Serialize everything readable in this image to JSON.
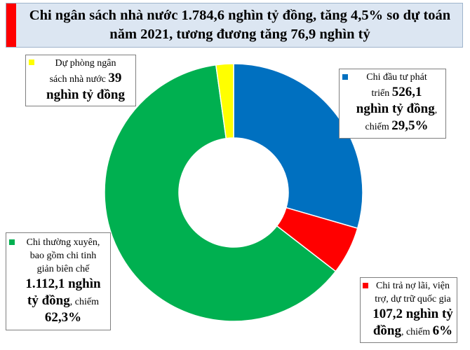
{
  "title": "Chi ngân sách nhà nước 1.784,6 nghìn tỷ đồng, tăng 4,5% so dự toán năm 2021, tương đương tăng 76,9 nghìn tỷ",
  "colors": {
    "title_bg": "#dce6f2",
    "title_accent": "#ff0000",
    "investment": "#0070c0",
    "debt": "#ff0000",
    "recurrent": "#00b050",
    "reserve": "#ffff00"
  },
  "chart_data": {
    "type": "pie",
    "variant": "donut",
    "title": "Chi ngân sách nhà nước 1.784,6 nghìn tỷ đồng, tăng 4,5% so dự toán năm 2021, tương đương tăng 76,9 nghìn tỷ",
    "unit": "nghìn tỷ đồng",
    "slices": [
      {
        "name": "Chi đầu tư phát triển",
        "value": 526.1,
        "percent": 29.5,
        "color": "#0070c0"
      },
      {
        "name": "Chi trả nợ lãi, viện trợ, dự trữ quốc gia",
        "value": 107.2,
        "percent": 6,
        "color": "#ff0000"
      },
      {
        "name": "Chi thường xuyên, bao gồm chi tinh giản biên chế",
        "value": 1112.1,
        "percent": 62.3,
        "color": "#00b050"
      },
      {
        "name": "Dự phòng ngân sách nhà nước",
        "value": 39,
        "percent": null,
        "color": "#ffff00"
      }
    ],
    "start_angle": "top (12 o'clock), clockwise"
  },
  "labels": {
    "investment": {
      "line1": "Chi đầu tư phát",
      "line2_small": "triển ",
      "line2_big": "526,1",
      "line3_big": "nghìn tỷ đồng",
      "line3_small": ",",
      "line4_small": "chiếm ",
      "line4_big": "29,5%"
    },
    "debt": {
      "line1": "Chi trả nợ lãi, viện",
      "line2": "trợ, dự trữ quốc gia",
      "line3_big": "107,2 nghìn tỷ",
      "line4_big": "đồng",
      "line4_small": ", chiếm ",
      "line4_big2": "6%"
    },
    "recurrent": {
      "line1": "Chi thường xuyên,",
      "line2": "bao gồm chi tinh",
      "line3": "giản biên chế",
      "line4_big": "1.112,1 nghìn",
      "line5_big": "tỷ đồng",
      "line5_small": ", chiếm",
      "line6_big": "62,3%"
    },
    "reserve": {
      "line1": "Dự phòng ngân",
      "line2_small": "sách nhà nước ",
      "line2_big": "39",
      "line3_big": "nghìn tỷ đồng"
    }
  }
}
